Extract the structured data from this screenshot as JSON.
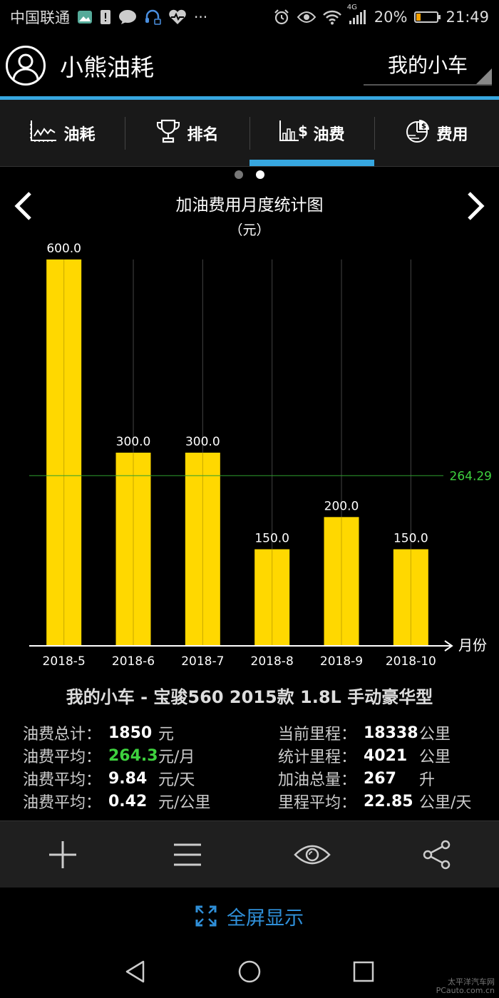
{
  "status_bar": {
    "carrier": "中国联通",
    "battery_percent": "20%",
    "battery_level": 0.2,
    "time": "21:49",
    "network": "4G",
    "icons": [
      "photo-icon",
      "sim-alert-icon",
      "chat-icon",
      "headset-icon",
      "heart-rate-icon",
      "more-icon",
      "alarm-icon",
      "eye-icon",
      "wifi-icon",
      "signal-icon",
      "battery-icon"
    ]
  },
  "app_bar": {
    "title": "小熊油耗",
    "car_selector": "我的小车"
  },
  "tabs": [
    {
      "label": "油耗",
      "icon": "line-chart-icon",
      "active": false
    },
    {
      "label": "排名",
      "icon": "trophy-icon",
      "active": false
    },
    {
      "label": "油费",
      "icon": "bar-money-icon",
      "active": true
    },
    {
      "label": "费用",
      "icon": "pie-chart-icon",
      "active": false
    }
  ],
  "pager": {
    "pages": 2,
    "current": 2
  },
  "chart_data": {
    "type": "bar",
    "title": "加油费用月度统计图",
    "unit": "（元）",
    "xlabel": "月份",
    "categories": [
      "2018-5",
      "2018-6",
      "2018-7",
      "2018-8",
      "2018-9",
      "2018-10"
    ],
    "values": [
      600.0,
      300.0,
      300.0,
      150.0,
      200.0,
      150.0
    ],
    "value_labels": [
      "600.0",
      "300.0",
      "300.0",
      "150.0",
      "200.0",
      "150.0"
    ],
    "average": 264.29,
    "average_label": "264.29",
    "ylim": [
      0,
      600
    ],
    "bar_color": "#FFD800",
    "average_line_color": "#2ea02e",
    "grid": true
  },
  "car_description": "我的小车 - 宝骏560 2015款 1.8L 手动豪华型",
  "stats_left": [
    {
      "label": "油费总计：",
      "value": "1850",
      "unit": "元",
      "highlight": false
    },
    {
      "label": "油费平均：",
      "value": "264.3",
      "unit": "元/月",
      "highlight": true
    },
    {
      "label": "油费平均：",
      "value": "9.84",
      "unit": "元/天",
      "highlight": false
    },
    {
      "label": "油费平均：",
      "value": "0.42",
      "unit": "元/公里",
      "highlight": false
    }
  ],
  "stats_right": [
    {
      "label": "当前里程：",
      "value": "18338",
      "unit": "公里",
      "highlight": false
    },
    {
      "label": "统计里程：",
      "value": "4021",
      "unit": "公里",
      "highlight": false
    },
    {
      "label": "加油总量：",
      "value": "267",
      "unit": "升",
      "highlight": false
    },
    {
      "label": "里程平均：",
      "value": "22.85",
      "unit": "公里/天",
      "highlight": false
    }
  ],
  "toolbar": {
    "icons": [
      "plus-icon",
      "menu-icon",
      "eye-icon",
      "share-icon"
    ]
  },
  "fullscreen_label": "全屏显示",
  "nav_bar": {
    "icons": [
      "back-icon",
      "home-icon",
      "recents-icon"
    ]
  },
  "watermark": {
    "line1": "太平洋汽车网",
    "line2": "PCauto.com.cn"
  }
}
